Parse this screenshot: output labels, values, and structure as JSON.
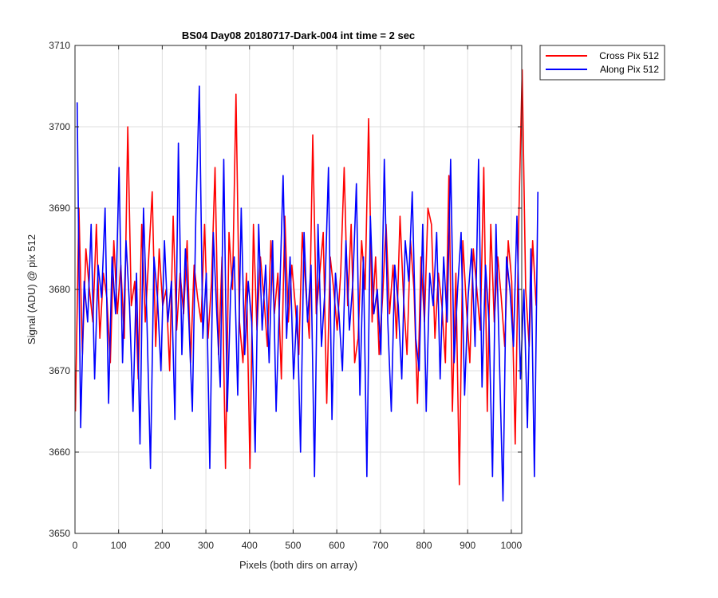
{
  "chart_data": {
    "type": "line",
    "title": "BS04 Day08 20180717-Dark-004 int time = 2 sec",
    "xlabel": "Pixels (both dirs on array)",
    "ylabel": "Signal (ADU) @ pix 512",
    "xlim": [
      0,
      1024
    ],
    "ylim": [
      3650,
      3710
    ],
    "xticks": [
      0,
      100,
      200,
      300,
      400,
      500,
      600,
      700,
      800,
      900,
      1000
    ],
    "yticks": [
      3650,
      3660,
      3670,
      3680,
      3690,
      3700,
      3710
    ],
    "grid": true,
    "legend_position": "outside-top-right",
    "series": [
      {
        "name": "Cross Pix 512",
        "color": "#ff0000",
        "x_start": 1,
        "x_step": 8,
        "values": [
          3665,
          3690,
          3672,
          3685,
          3680,
          3676,
          3688,
          3674,
          3682,
          3679,
          3671,
          3686,
          3677,
          3683,
          3674,
          3700,
          3678,
          3681,
          3669,
          3688,
          3676,
          3684,
          3692,
          3673,
          3685,
          3678,
          3680,
          3670,
          3689,
          3675,
          3682,
          3677,
          3686,
          3671,
          3683,
          3679,
          3676,
          3688,
          3674,
          3681,
          3695,
          3672,
          3684,
          3658,
          3687,
          3680,
          3704,
          3676,
          3671,
          3682,
          3658,
          3688,
          3675,
          3684,
          3679,
          3673,
          3686,
          3677,
          3682,
          3669,
          3689,
          3676,
          3683,
          3678,
          3672,
          3687,
          3680,
          3674,
          3699,
          3677,
          3682,
          3687,
          3666,
          3684,
          3680,
          3675,
          3682,
          3695,
          3678,
          3688,
          3671,
          3674,
          3686,
          3680,
          3701,
          3676,
          3684,
          3672,
          3679,
          3688,
          3677,
          3683,
          3674,
          3689,
          3679,
          3672,
          3686,
          3680,
          3666,
          3684,
          3676,
          3690,
          3688,
          3674,
          3682,
          3678,
          3671,
          3694,
          3665,
          3682,
          3656,
          3686,
          3678,
          3671,
          3685,
          3680,
          3675,
          3695,
          3665,
          3688,
          3676,
          3684,
          3679,
          3673,
          3686,
          3681,
          3661,
          3688,
          3707,
          3680,
          3673,
          3686,
          3678
        ]
      },
      {
        "name": "Along Pix 512",
        "color": "#0000ff",
        "x_start": 5,
        "x_step": 8,
        "values": [
          3703,
          3663,
          3681,
          3676,
          3688,
          3669,
          3683,
          3679,
          3690,
          3666,
          3684,
          3677,
          3695,
          3671,
          3686,
          3678,
          3665,
          3682,
          3661,
          3690,
          3676,
          3658,
          3684,
          3679,
          3670,
          3686,
          3676,
          3681,
          3664,
          3698,
          3672,
          3685,
          3676,
          3665,
          3689,
          3705,
          3674,
          3682,
          3658,
          3687,
          3677,
          3668,
          3696,
          3665,
          3680,
          3684,
          3667,
          3690,
          3672,
          3681,
          3676,
          3660,
          3688,
          3675,
          3683,
          3671,
          3686,
          3665,
          3679,
          3694,
          3674,
          3684,
          3669,
          3678,
          3660,
          3687,
          3676,
          3683,
          3657,
          3688,
          3673,
          3680,
          3695,
          3664,
          3682,
          3677,
          3670,
          3686,
          3675,
          3681,
          3693,
          3667,
          3684,
          3657,
          3689,
          3677,
          3680,
          3672,
          3696,
          3676,
          3665,
          3683,
          3678,
          3669,
          3686,
          3681,
          3692,
          3674,
          3670,
          3688,
          3665,
          3682,
          3678,
          3687,
          3669,
          3684,
          3676,
          3696,
          3671,
          3680,
          3687,
          3667,
          3679,
          3685,
          3673,
          3696,
          3668,
          3683,
          3676,
          3657,
          3688,
          3671,
          3654,
          3684,
          3680,
          3673,
          3689,
          3669,
          3680,
          3663,
          3685,
          3657,
          3692
        ]
      }
    ]
  }
}
